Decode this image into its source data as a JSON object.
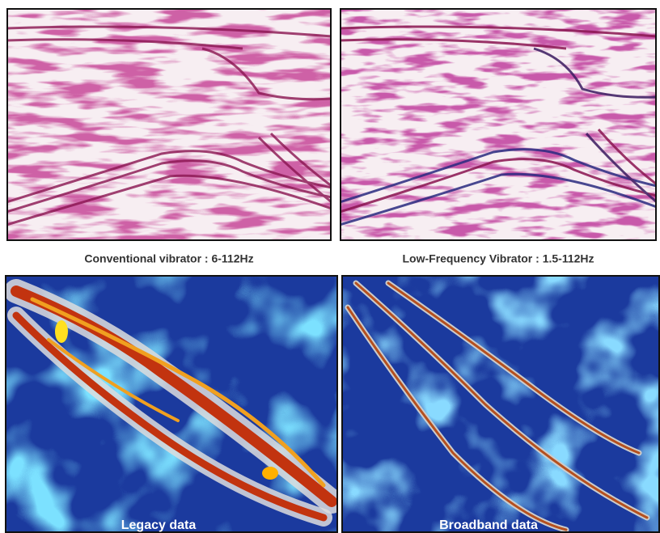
{
  "panels": [
    {
      "caption": "Conventional vibrator : 6-112Hz"
    },
    {
      "caption": "Low-Frequency Vibrator : 1.5-112Hz"
    }
  ],
  "maps": [
    {
      "label": "Legacy data"
    },
    {
      "label": "Broadband data"
    }
  ]
}
